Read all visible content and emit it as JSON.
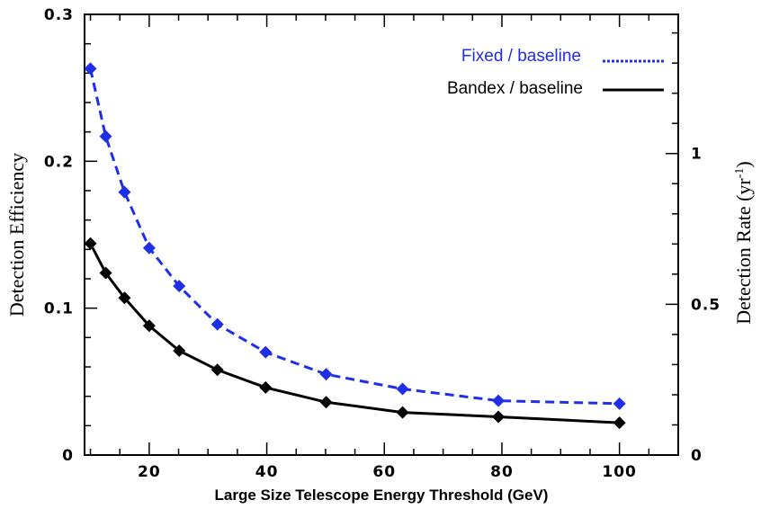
{
  "chart_data": {
    "type": "line",
    "title": "",
    "xlabel": "Large Size Telescope Energy Threshold (GeV)",
    "ylabel": "Detection Efficiency",
    "y2label": "Detection Rate (yr",
    "y2label_sup": "-1",
    "xlim": [
      9,
      110
    ],
    "ylim": [
      0,
      0.3
    ],
    "y2lim": [
      0,
      1.4615
    ],
    "x_ticks": [
      20,
      40,
      60,
      80,
      100
    ],
    "x_tick_labels": [
      "20",
      "40",
      "60",
      "80",
      "100"
    ],
    "y_ticks": [
      0,
      0.1,
      0.2,
      0.3
    ],
    "y_tick_labels": [
      "0",
      "0.1",
      "0.2",
      "0.3"
    ],
    "y2_ticks": [
      0,
      0.5,
      1
    ],
    "y2_tick_labels": [
      "0",
      "0.5",
      "1"
    ],
    "legend_position": "top-right",
    "series": [
      {
        "name": "Fixed / baseline",
        "color": "#1f2fe6",
        "style": "dashed",
        "x": [
          10,
          12.6,
          15.8,
          20,
          25.1,
          31.6,
          39.8,
          50.1,
          63.1,
          79.4,
          100
        ],
        "values": [
          0.263,
          0.217,
          0.179,
          0.141,
          0.115,
          0.089,
          0.07,
          0.055,
          0.045,
          0.037,
          0.035
        ]
      },
      {
        "name": "Bandex / baseline",
        "color": "#000000",
        "style": "solid",
        "x": [
          10,
          12.6,
          15.8,
          20,
          25.1,
          31.6,
          39.8,
          50.1,
          63.1,
          79.4,
          100
        ],
        "values": [
          0.144,
          0.124,
          0.107,
          0.088,
          0.071,
          0.058,
          0.046,
          0.036,
          0.029,
          0.026,
          0.022
        ]
      }
    ]
  }
}
